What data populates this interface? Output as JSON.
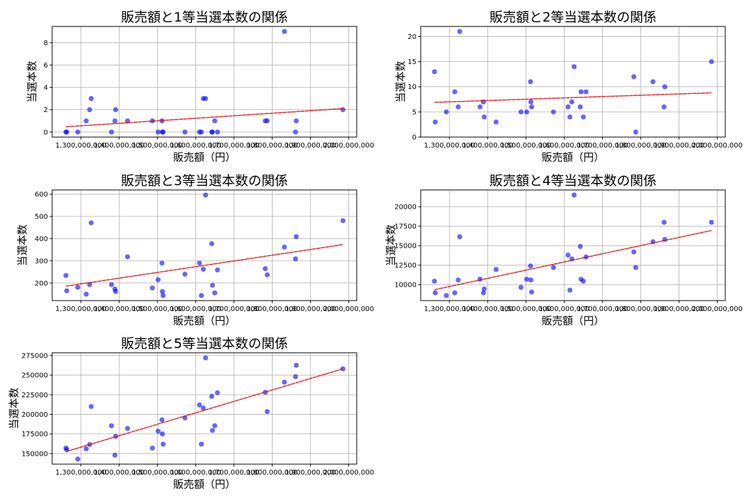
{
  "shared_x": [
    1261000000,
    1263000000,
    1292000000,
    1314000000,
    1323000000,
    1327000000,
    1380000000,
    1389000000,
    1391000000,
    1422000000,
    1487000000,
    1502000000,
    1512000000,
    1513000000,
    1515000000,
    1572000000,
    1610000000,
    1615000000,
    1620000000,
    1626000000,
    1642000000,
    1644000000,
    1650000000,
    1657000000,
    1782000000,
    1787000000,
    1832000000,
    1861000000,
    1863000000,
    1985000000
  ],
  "colors": {
    "points": "#0000ff",
    "trend": "#e00000"
  },
  "chart_data": [
    {
      "type": "scatter",
      "title": "販売額と1等当選本数の関係",
      "xlabel": "販売額（円）",
      "ylabel": "当選本数",
      "xlim": [
        1225000000,
        2021000000
      ],
      "ylim": [
        -0.45,
        9.45
      ],
      "xticks": [
        1300000000,
        1400000000,
        1500000000,
        1600000000,
        1700000000,
        1800000000,
        1900000000,
        2000000000
      ],
      "xtick_labels": [
        "1,300,000,000",
        "1,400,000,000",
        "1,500,000,000",
        "1,600,000,000",
        "1,700,000,000",
        "1,800,000,000",
        "1,900,000,000",
        "2,000,000,000"
      ],
      "yticks": [
        0,
        2,
        4,
        6,
        8
      ],
      "ytick_labels": [
        "0",
        "2",
        "4",
        "6",
        "8"
      ],
      "grid": true,
      "y": [
        0,
        0,
        0,
        1,
        2,
        3,
        0,
        1,
        2,
        1,
        1,
        0,
        1,
        0,
        0,
        0,
        0,
        0,
        3,
        3,
        0,
        0,
        1,
        0,
        1,
        1,
        9,
        0,
        1,
        2
      ],
      "trend": {
        "x": [
          1261000000,
          1985000000
        ],
        "y": [
          0.47,
          2.1
        ]
      }
    },
    {
      "type": "scatter",
      "title": "販売額と2等当選本数の関係",
      "xlabel": "販売額（円）",
      "ylabel": "当選本数",
      "xlim": [
        1225000000,
        2021000000
      ],
      "ylim": [
        0,
        22
      ],
      "xticks": [
        1300000000,
        1400000000,
        1500000000,
        1600000000,
        1700000000,
        1800000000,
        1900000000,
        2000000000
      ],
      "xtick_labels": [
        "1,300,000,000",
        "1,400,000,000",
        "1,500,000,000",
        "1,600,000,000",
        "1,700,000,000",
        "1,800,000,000",
        "1,900,000,000",
        "2,000,000,000"
      ],
      "yticks": [
        0,
        5,
        10,
        15,
        20
      ],
      "ytick_labels": [
        "0",
        "5",
        "10",
        "15",
        "20"
      ],
      "grid": true,
      "y": [
        13,
        3,
        5,
        9,
        6,
        21,
        6,
        7,
        4,
        3,
        5,
        5,
        11,
        7,
        6,
        5,
        6,
        4,
        7,
        14,
        6,
        9,
        4,
        9,
        12,
        1,
        11,
        6,
        10,
        15
      ],
      "trend": {
        "x": [
          1261000000,
          1985000000
        ],
        "y": [
          6.9,
          8.8
        ]
      }
    },
    {
      "type": "scatter",
      "title": "販売額と3等当選本数の関係",
      "xlabel": "販売額（円）",
      "ylabel": "当選本数",
      "xlim": [
        1225000000,
        2021000000
      ],
      "ylim": [
        121,
        619
      ],
      "xticks": [
        1300000000,
        1400000000,
        1500000000,
        1600000000,
        1700000000,
        1800000000,
        1900000000,
        2000000000
      ],
      "xtick_labels": [
        "1,300,000,000",
        "1,400,000,000",
        "1,500,000,000",
        "1,600,000,000",
        "1,700,000,000",
        "1,800,000,000",
        "1,900,000,000",
        "2,000,000,000"
      ],
      "yticks": [
        200,
        300,
        400,
        500,
        600
      ],
      "ytick_labels": [
        "200",
        "300",
        "400",
        "500",
        "600"
      ],
      "grid": true,
      "y": [
        234,
        165,
        181,
        150,
        193,
        471,
        193,
        173,
        162,
        318,
        178,
        215,
        290,
        162,
        144,
        240,
        290,
        144,
        262,
        596,
        377,
        190,
        156,
        259,
        265,
        237,
        362,
        309,
        409,
        481
      ],
      "trend": {
        "x": [
          1261000000,
          1985000000
        ],
        "y": [
          186,
          373
        ]
      }
    },
    {
      "type": "scatter",
      "title": "販売額と4等当選本数の関係",
      "xlabel": "販売額（円）",
      "ylabel": "当選本数",
      "xlim": [
        1225000000,
        2021000000
      ],
      "ylim": [
        7955,
        22145
      ],
      "xticks": [
        1300000000,
        1400000000,
        1500000000,
        1600000000,
        1700000000,
        1800000000,
        1900000000,
        2000000000
      ],
      "xtick_labels": [
        "1,300,000,000",
        "1,400,000,000",
        "1,500,000,000",
        "1,600,000,000",
        "1,700,000,000",
        "1,800,000,000",
        "1,900,000,000",
        "2,000,000,000"
      ],
      "yticks": [
        10000,
        12500,
        15000,
        17500,
        20000
      ],
      "ytick_labels": [
        "10000",
        "12500",
        "15000",
        "17500",
        "20000"
      ],
      "grid": true,
      "y": [
        10450,
        8950,
        8600,
        8950,
        10600,
        16150,
        10700,
        8950,
        9450,
        11950,
        9650,
        10700,
        12400,
        10600,
        9050,
        12200,
        13800,
        9300,
        13300,
        21500,
        14900,
        10700,
        10450,
        13550,
        14200,
        12200,
        15500,
        18000,
        15800,
        18000
      ],
      "trend": {
        "x": [
          1261000000,
          1985000000
        ],
        "y": [
          9350,
          16950
        ]
      }
    },
    {
      "type": "scatter",
      "title": "販売額と5等当選本数の関係",
      "xlabel": "販売額（円）",
      "ylabel": "当選本数",
      "xlim": [
        1225000000,
        2021000000
      ],
      "ylim": [
        136550,
        278450
      ],
      "xticks": [
        1300000000,
        1400000000,
        1500000000,
        1600000000,
        1700000000,
        1800000000,
        1900000000,
        2000000000
      ],
      "xtick_labels": [
        "1,300,000,000",
        "1,400,000,000",
        "1,500,000,000",
        "1,600,000,000",
        "1,700,000,000",
        "1,800,000,000",
        "1,900,000,000",
        "2,000,000,000"
      ],
      "yticks": [
        150000,
        175000,
        200000,
        225000,
        250000,
        275000
      ],
      "ytick_labels": [
        "150000",
        "175000",
        "200000",
        "225000",
        "250000",
        "275000"
      ],
      "grid": true,
      "y": [
        157000,
        155000,
        143000,
        156000,
        161500,
        210000,
        185500,
        148000,
        172000,
        182000,
        157000,
        178500,
        193000,
        175000,
        162000,
        195500,
        212000,
        162000,
        208000,
        272000,
        223000,
        179500,
        185500,
        227500,
        228000,
        203500,
        241000,
        248000,
        262500,
        258000
      ],
      "trend": {
        "x": [
          1261000000,
          1985000000
        ],
        "y": [
          152500,
          258000
        ]
      }
    }
  ]
}
